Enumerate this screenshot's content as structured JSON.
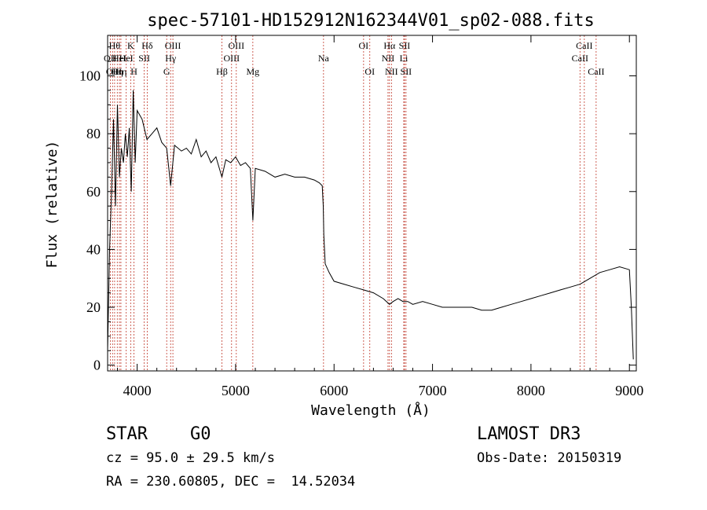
{
  "chart_data": {
    "type": "line",
    "title": "spec-57101-HD152912N162344V01_sp02-088.fits",
    "xlabel": "Wavelength (Å)",
    "ylabel": "Flux (relative)",
    "xlim": [
      3700,
      9070
    ],
    "ylim": [
      -2,
      114
    ],
    "xticks": [
      4000,
      5000,
      6000,
      7000,
      8000,
      9000
    ],
    "yticks": [
      0,
      20,
      40,
      60,
      80,
      100
    ],
    "grid": false,
    "line_color": "#000000",
    "marker_color": "#c0392b",
    "series": [
      {
        "name": "flux",
        "x": [
          3700,
          3720,
          3740,
          3760,
          3780,
          3800,
          3820,
          3840,
          3860,
          3880,
          3900,
          3920,
          3940,
          3960,
          3980,
          4000,
          4050,
          4100,
          4150,
          4200,
          4250,
          4300,
          4340,
          4380,
          4450,
          4500,
          4550,
          4600,
          4650,
          4700,
          4750,
          4800,
          4861,
          4900,
          4950,
          5000,
          5050,
          5100,
          5150,
          5175,
          5200,
          5300,
          5400,
          5500,
          5600,
          5700,
          5800,
          5850,
          5880,
          5890,
          5896,
          5910,
          5950,
          6000,
          6100,
          6200,
          6300,
          6400,
          6500,
          6563,
          6600,
          6650,
          6700,
          6750,
          6800,
          6900,
          7000,
          7100,
          7200,
          7300,
          7400,
          7500,
          7600,
          7700,
          7800,
          7900,
          8000,
          8100,
          8200,
          8300,
          8400,
          8500,
          8600,
          8700,
          8800,
          8900,
          9000,
          9020,
          9040
        ],
        "y": [
          5,
          40,
          60,
          85,
          55,
          90,
          65,
          75,
          70,
          80,
          72,
          82,
          60,
          95,
          70,
          88,
          85,
          78,
          80,
          82,
          77,
          75,
          62,
          76,
          74,
          75,
          73,
          78,
          72,
          74,
          70,
          72,
          65,
          71,
          70,
          72,
          69,
          70,
          68,
          50,
          68,
          67,
          65,
          66,
          65,
          65,
          64,
          63,
          62,
          55,
          45,
          35,
          32,
          29,
          28,
          27,
          26,
          25,
          23,
          21,
          22,
          23,
          22,
          22,
          21,
          22,
          21,
          20,
          20,
          20,
          20,
          19,
          19,
          20,
          21,
          22,
          23,
          24,
          25,
          26,
          27,
          28,
          30,
          32,
          33,
          34,
          33,
          20,
          2
        ]
      }
    ],
    "line_markers": [
      {
        "wavelength": 3727,
        "label": "OII",
        "row": 2
      },
      {
        "wavelength": 3750,
        "label": "OII",
        "row": 3
      },
      {
        "wavelength": 3771,
        "label": "Hθ",
        "row": 1
      },
      {
        "wavelength": 3798,
        "label": "Hη",
        "row": 3
      },
      {
        "wavelength": 3820,
        "label": "HeI",
        "row": 2
      },
      {
        "wavelength": 3835,
        "label": "Hη",
        "row": 3
      },
      {
        "wavelength": 3889,
        "label": "HeI",
        "row": 2
      },
      {
        "wavelength": 3934,
        "label": "K",
        "row": 1
      },
      {
        "wavelength": 3968,
        "label": "H",
        "row": 3
      },
      {
        "wavelength": 4072,
        "label": "SII",
        "row": 2
      },
      {
        "wavelength": 4102,
        "label": "Hδ",
        "row": 1
      },
      {
        "wavelength": 4300,
        "label": "G",
        "row": 3
      },
      {
        "wavelength": 4340,
        "label": "Hγ",
        "row": 2
      },
      {
        "wavelength": 4363,
        "label": "OIII",
        "row": 1
      },
      {
        "wavelength": 4861,
        "label": "Hβ",
        "row": 3
      },
      {
        "wavelength": 4959,
        "label": "OIII",
        "row": 2
      },
      {
        "wavelength": 5007,
        "label": "OIII",
        "row": 1
      },
      {
        "wavelength": 5175,
        "label": "Mg",
        "row": 3
      },
      {
        "wavelength": 5893,
        "label": "Na",
        "row": 2
      },
      {
        "wavelength": 6300,
        "label": "OI",
        "row": 1
      },
      {
        "wavelength": 6363,
        "label": "OI",
        "row": 3
      },
      {
        "wavelength": 6548,
        "label": "NII",
        "row": 2
      },
      {
        "wavelength": 6563,
        "label": "Hα",
        "row": 1
      },
      {
        "wavelength": 6583,
        "label": "NII",
        "row": 3
      },
      {
        "wavelength": 6708,
        "label": "Li",
        "row": 2
      },
      {
        "wavelength": 6716,
        "label": "SII",
        "row": 1
      },
      {
        "wavelength": 6731,
        "label": "SII",
        "row": 3
      },
      {
        "wavelength": 8498,
        "label": "CaII",
        "row": 2
      },
      {
        "wavelength": 8542,
        "label": "CaII",
        "row": 1
      },
      {
        "wavelength": 8662,
        "label": "CaII",
        "row": 3
      }
    ]
  },
  "info": {
    "class_label": "STAR",
    "subclass": "G0",
    "survey": "LAMOST DR3",
    "redshift": "cz = 95.0 ± 29.5 km/s",
    "obs_date": "Obs-Date: 20150319",
    "coords": "RA = 230.60805, DEC =  14.52034"
  }
}
